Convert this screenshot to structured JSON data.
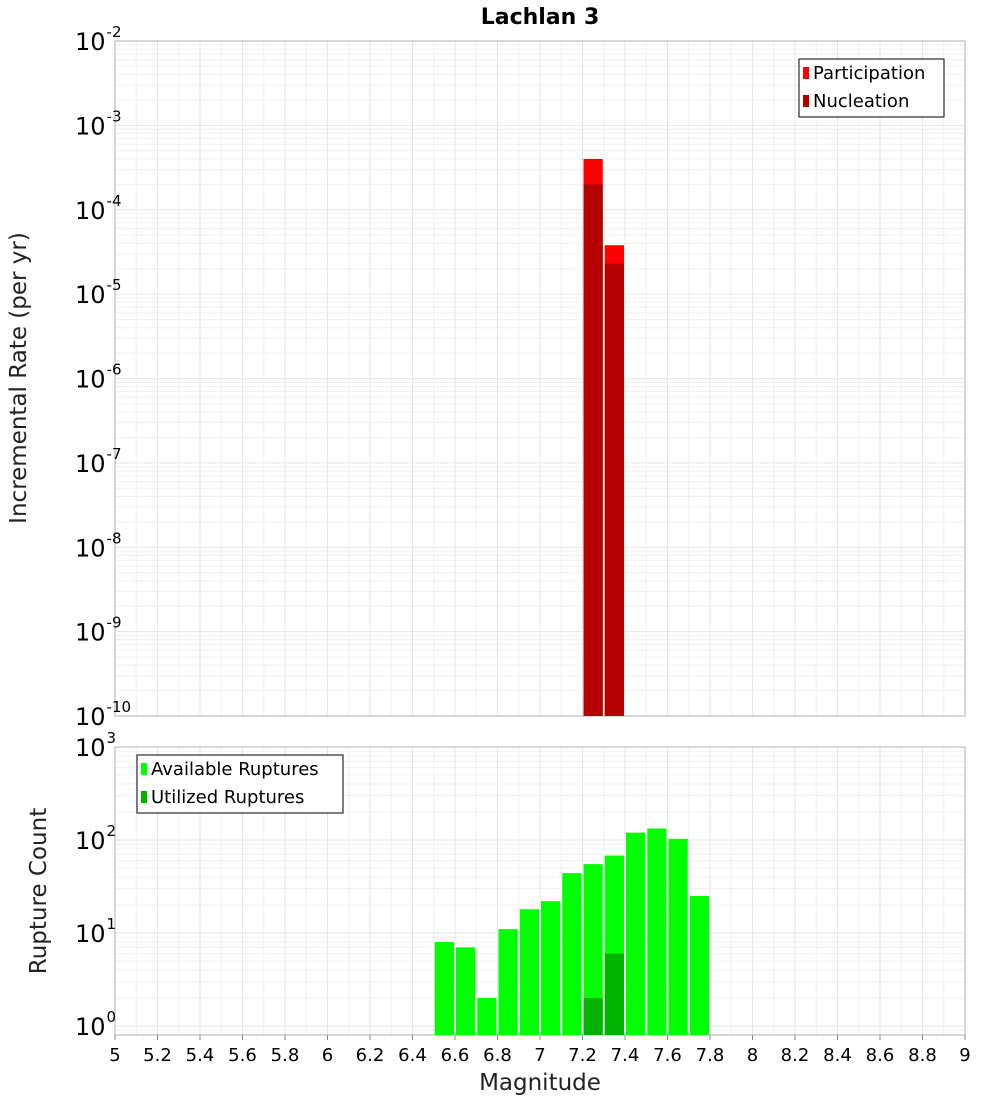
{
  "chart_data": [
    {
      "type": "bar",
      "title": "Lachlan 3",
      "xlabel": "",
      "ylabel": "Incremental Rate (per yr)",
      "y_scale": "log",
      "xlim": [
        5,
        9
      ],
      "ylim": [
        1e-10,
        0.01
      ],
      "y_ticks": [
        {
          "base": "10",
          "exp": "-10",
          "value": 1e-10
        },
        {
          "base": "10",
          "exp": "-9",
          "value": 1e-09
        },
        {
          "base": "10",
          "exp": "-8",
          "value": 1e-08
        },
        {
          "base": "10",
          "exp": "-7",
          "value": 1e-07
        },
        {
          "base": "10",
          "exp": "-6",
          "value": 1e-06
        },
        {
          "base": "10",
          "exp": "-5",
          "value": 1e-05
        },
        {
          "base": "10",
          "exp": "-4",
          "value": 0.0001
        },
        {
          "base": "10",
          "exp": "-3",
          "value": 0.001
        },
        {
          "base": "10",
          "exp": "-2",
          "value": 0.01
        }
      ],
      "bin_width": 0.1,
      "legend": {
        "position": "top-right",
        "entries": [
          "Participation",
          "Nucleation"
        ]
      },
      "grid": true,
      "series": [
        {
          "name": "Participation",
          "color": "#ff0000",
          "points": [
            {
              "x": 7.25,
              "y": 0.0004
            },
            {
              "x": 7.35,
              "y": 3.8e-05
            }
          ]
        },
        {
          "name": "Nucleation",
          "color": "#b30000",
          "points": [
            {
              "x": 7.25,
              "y": 0.0002
            },
            {
              "x": 7.35,
              "y": 2.3e-05
            }
          ]
        }
      ]
    },
    {
      "type": "bar",
      "title": "",
      "xlabel": "Magnitude",
      "ylabel": "Rupture Count",
      "y_scale": "log",
      "xlim": [
        5,
        9
      ],
      "ylim": [
        0.8,
        1000
      ],
      "x_ticks": [
        "5",
        "5.2",
        "5.4",
        "5.6",
        "5.8",
        "6",
        "6.2",
        "6.4",
        "6.6",
        "6.8",
        "7",
        "7.2",
        "7.4",
        "7.6",
        "7.8",
        "8",
        "8.2",
        "8.4",
        "8.6",
        "8.8",
        "9"
      ],
      "y_ticks": [
        {
          "base": "10",
          "exp": "0",
          "value": 1
        },
        {
          "base": "10",
          "exp": "1",
          "value": 10
        },
        {
          "base": "10",
          "exp": "2",
          "value": 100
        },
        {
          "base": "10",
          "exp": "3",
          "value": 1000
        }
      ],
      "bin_width": 0.1,
      "legend": {
        "position": "top-left",
        "entries": [
          "Available Ruptures",
          "Utilized Ruptures"
        ]
      },
      "grid": true,
      "series": [
        {
          "name": "Available Ruptures",
          "color": "#00ff00",
          "points": [
            {
              "x": 6.55,
              "y": 8
            },
            {
              "x": 6.65,
              "y": 7
            },
            {
              "x": 6.75,
              "y": 2
            },
            {
              "x": 6.85,
              "y": 11
            },
            {
              "x": 6.95,
              "y": 18
            },
            {
              "x": 7.05,
              "y": 22
            },
            {
              "x": 7.15,
              "y": 44
            },
            {
              "x": 7.25,
              "y": 55
            },
            {
              "x": 7.35,
              "y": 68
            },
            {
              "x": 7.45,
              "y": 120
            },
            {
              "x": 7.55,
              "y": 133
            },
            {
              "x": 7.65,
              "y": 103
            },
            {
              "x": 7.75,
              "y": 25
            }
          ]
        },
        {
          "name": "Utilized Ruptures",
          "color": "#00b300",
          "points": [
            {
              "x": 7.25,
              "y": 2
            },
            {
              "x": 7.35,
              "y": 6
            }
          ]
        }
      ]
    }
  ]
}
